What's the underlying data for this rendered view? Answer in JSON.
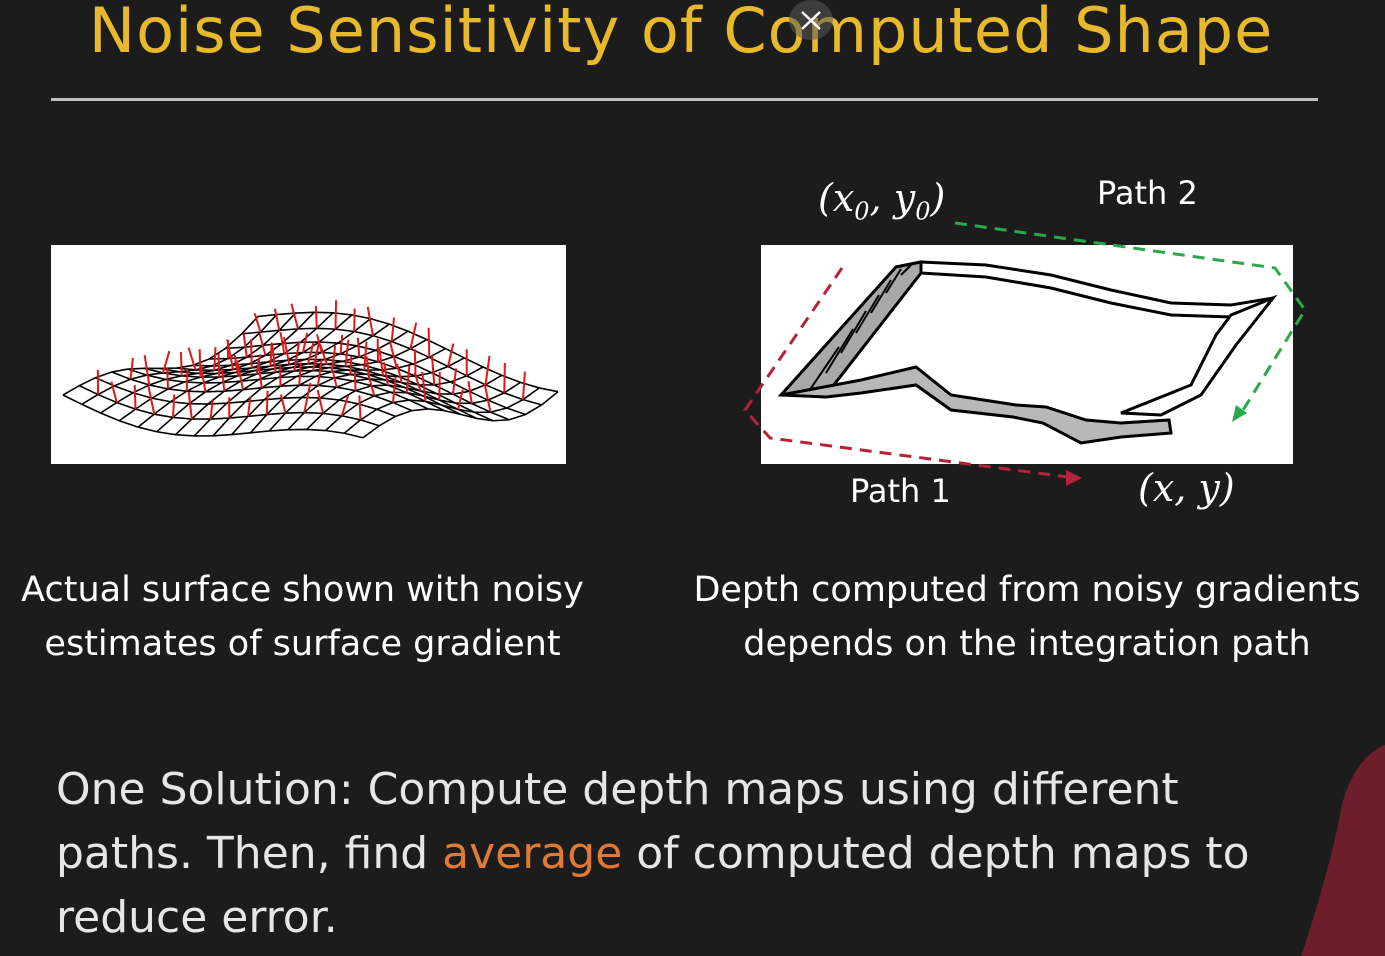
{
  "slide": {
    "title": "Noise Sensitivity of Computed Shape",
    "title_color": "#e8b92a",
    "background_color": "#1c1c1c"
  },
  "left_figure": {
    "caption_line1": "Actual surface shown with noisy",
    "caption_line2": "estimates of surface gradient"
  },
  "right_figure": {
    "start_point": {
      "base": "(x",
      "sub": "0",
      "mid": ", y",
      "sub2": "0",
      "end": ")"
    },
    "end_point": "(x, y)",
    "path1_label": "Path 1",
    "path2_label": "Path 2",
    "path1_color": "#b3243a",
    "path2_color": "#2aa84a",
    "caption_line1": "Depth computed from noisy gradients",
    "caption_line2": "depends on the integration path"
  },
  "solution": {
    "before": "One Solution: Compute depth maps using different paths. Then, find ",
    "highlight": "average",
    "after": " of computed depth maps to reduce error.",
    "highlight_color": "#e07a35"
  },
  "player": {
    "close_icon": "close-icon"
  }
}
